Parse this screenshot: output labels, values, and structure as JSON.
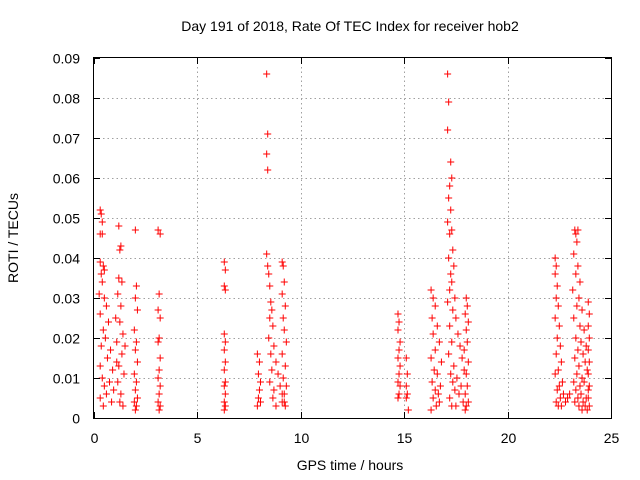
{
  "chart_data": {
    "type": "scatter",
    "title": "Day 191 of 2018, Rate Of TEC Index for receiver hob2",
    "xlabel": "GPS time / hours",
    "ylabel": "ROTI / TECUs",
    "xlim": [
      0,
      25
    ],
    "ylim": [
      0,
      0.09
    ],
    "x_ticks": [
      "0",
      "5",
      "10",
      "15",
      "20",
      "25"
    ],
    "y_ticks": [
      "0",
      "0.01",
      "0.02",
      "0.03",
      "0.04",
      "0.05",
      "0.06",
      "0.07",
      "0.08",
      "0.09"
    ],
    "grid": true,
    "marker": "plus",
    "color": "#ff0000",
    "series": [
      {
        "points": [
          [
            0.3,
            0.052
          ],
          [
            0.35,
            0.051
          ],
          [
            0.4,
            0.049
          ],
          [
            0.3,
            0.046
          ],
          [
            0.4,
            0.046
          ],
          [
            0.3,
            0.039
          ],
          [
            0.45,
            0.038
          ],
          [
            0.35,
            0.036
          ],
          [
            0.5,
            0.037
          ],
          [
            0.4,
            0.034
          ],
          [
            0.25,
            0.031
          ],
          [
            0.5,
            0.03
          ],
          [
            0.6,
            0.028
          ],
          [
            0.3,
            0.026
          ],
          [
            0.7,
            0.024
          ],
          [
            0.45,
            0.022
          ],
          [
            0.55,
            0.02
          ],
          [
            0.35,
            0.018
          ],
          [
            0.8,
            0.017
          ],
          [
            0.65,
            0.015
          ],
          [
            0.3,
            0.013
          ],
          [
            0.9,
            0.012
          ],
          [
            0.4,
            0.01
          ],
          [
            0.75,
            0.009
          ],
          [
            0.5,
            0.008
          ],
          [
            0.95,
            0.007
          ],
          [
            0.6,
            0.006
          ],
          [
            0.3,
            0.005
          ],
          [
            0.85,
            0.004
          ],
          [
            0.45,
            0.003
          ],
          [
            1.2,
            0.048
          ],
          [
            1.3,
            0.043
          ],
          [
            1.25,
            0.042
          ],
          [
            1.2,
            0.035
          ],
          [
            1.35,
            0.034
          ],
          [
            1.15,
            0.031
          ],
          [
            1.3,
            0.028
          ],
          [
            1.25,
            0.024
          ],
          [
            1.4,
            0.021
          ],
          [
            1.1,
            0.019
          ],
          [
            1.35,
            0.016
          ],
          [
            1.2,
            0.013
          ],
          [
            1.45,
            0.011
          ],
          [
            1.15,
            0.009
          ],
          [
            1.3,
            0.006
          ],
          [
            1.25,
            0.004
          ],
          [
            1.4,
            0.003
          ],
          [
            1.05,
            0.025
          ],
          [
            1.5,
            0.018
          ],
          [
            1.1,
            0.014
          ],
          [
            2.0,
            0.047
          ],
          [
            2.05,
            0.033
          ],
          [
            2.0,
            0.03
          ],
          [
            2.1,
            0.027
          ],
          [
            1.95,
            0.022
          ],
          [
            2.05,
            0.019
          ],
          [
            2.0,
            0.017
          ],
          [
            2.1,
            0.014
          ],
          [
            1.95,
            0.011
          ],
          [
            2.05,
            0.009
          ],
          [
            2.0,
            0.007
          ],
          [
            2.1,
            0.005
          ],
          [
            1.95,
            0.004
          ],
          [
            2.05,
            0.003
          ],
          [
            2.0,
            0.002
          ],
          [
            3.1,
            0.047
          ],
          [
            3.2,
            0.046
          ],
          [
            3.15,
            0.031
          ],
          [
            3.1,
            0.027
          ],
          [
            3.2,
            0.025
          ],
          [
            3.15,
            0.02
          ],
          [
            3.1,
            0.019
          ],
          [
            3.2,
            0.015
          ],
          [
            3.15,
            0.012
          ],
          [
            3.1,
            0.01
          ],
          [
            3.2,
            0.008
          ],
          [
            3.15,
            0.006
          ],
          [
            3.1,
            0.004
          ],
          [
            3.2,
            0.003
          ],
          [
            3.15,
            0.002
          ],
          [
            6.3,
            0.039
          ],
          [
            6.35,
            0.037
          ],
          [
            6.3,
            0.033
          ],
          [
            6.35,
            0.032
          ],
          [
            6.3,
            0.021
          ],
          [
            6.35,
            0.019
          ],
          [
            6.3,
            0.017
          ],
          [
            6.35,
            0.014
          ],
          [
            6.3,
            0.012
          ],
          [
            6.35,
            0.009
          ],
          [
            6.3,
            0.008
          ],
          [
            6.35,
            0.006
          ],
          [
            6.3,
            0.004
          ],
          [
            6.35,
            0.003
          ],
          [
            6.3,
            0.002
          ],
          [
            7.9,
            0.016
          ],
          [
            8.0,
            0.014
          ],
          [
            7.95,
            0.011
          ],
          [
            8.05,
            0.009
          ],
          [
            8.0,
            0.007
          ],
          [
            7.95,
            0.005
          ],
          [
            8.05,
            0.004
          ],
          [
            7.9,
            0.003
          ],
          [
            8.35,
            0.086
          ],
          [
            8.4,
            0.071
          ],
          [
            8.35,
            0.066
          ],
          [
            8.4,
            0.062
          ],
          [
            8.35,
            0.041
          ],
          [
            8.4,
            0.038
          ],
          [
            8.45,
            0.036
          ],
          [
            8.5,
            0.033
          ],
          [
            8.55,
            0.029
          ],
          [
            8.6,
            0.027
          ],
          [
            8.5,
            0.025
          ],
          [
            8.65,
            0.023
          ],
          [
            8.45,
            0.02
          ],
          [
            8.7,
            0.018
          ],
          [
            8.55,
            0.016
          ],
          [
            8.8,
            0.014
          ],
          [
            8.6,
            0.012
          ],
          [
            8.9,
            0.011
          ],
          [
            8.5,
            0.009
          ],
          [
            9.0,
            0.008
          ],
          [
            8.7,
            0.007
          ],
          [
            9.1,
            0.006
          ],
          [
            8.65,
            0.005
          ],
          [
            9.2,
            0.004
          ],
          [
            8.8,
            0.003
          ],
          [
            9.1,
            0.039
          ],
          [
            9.15,
            0.038
          ],
          [
            9.2,
            0.034
          ],
          [
            9.1,
            0.031
          ],
          [
            9.25,
            0.028
          ],
          [
            9.15,
            0.025
          ],
          [
            9.2,
            0.022
          ],
          [
            9.3,
            0.019
          ],
          [
            9.1,
            0.016
          ],
          [
            9.25,
            0.013
          ],
          [
            9.15,
            0.01
          ],
          [
            9.3,
            0.008
          ],
          [
            9.2,
            0.006
          ],
          [
            9.1,
            0.004
          ],
          [
            9.25,
            0.003
          ],
          [
            14.7,
            0.026
          ],
          [
            14.75,
            0.024
          ],
          [
            14.7,
            0.022
          ],
          [
            14.8,
            0.019
          ],
          [
            14.75,
            0.017
          ],
          [
            14.7,
            0.015
          ],
          [
            14.8,
            0.013
          ],
          [
            14.75,
            0.011
          ],
          [
            14.7,
            0.009
          ],
          [
            14.8,
            0.008
          ],
          [
            14.75,
            0.006
          ],
          [
            14.7,
            0.005
          ],
          [
            15.1,
            0.015
          ],
          [
            15.15,
            0.011
          ],
          [
            15.1,
            0.008
          ],
          [
            15.15,
            0.006
          ],
          [
            15.1,
            0.005
          ],
          [
            15.2,
            0.002
          ],
          [
            16.3,
            0.032
          ],
          [
            16.4,
            0.03
          ],
          [
            16.5,
            0.028
          ],
          [
            16.35,
            0.025
          ],
          [
            16.6,
            0.023
          ],
          [
            16.4,
            0.021
          ],
          [
            16.7,
            0.019
          ],
          [
            16.5,
            0.017
          ],
          [
            16.3,
            0.015
          ],
          [
            16.8,
            0.014
          ],
          [
            16.45,
            0.012
          ],
          [
            16.6,
            0.011
          ],
          [
            16.35,
            0.009
          ],
          [
            16.75,
            0.008
          ],
          [
            16.5,
            0.007
          ],
          [
            16.65,
            0.006
          ],
          [
            16.4,
            0.005
          ],
          [
            16.7,
            0.004
          ],
          [
            16.55,
            0.003
          ],
          [
            16.3,
            0.002
          ],
          [
            17.1,
            0.086
          ],
          [
            17.15,
            0.079
          ],
          [
            17.1,
            0.072
          ],
          [
            17.25,
            0.064
          ],
          [
            17.3,
            0.06
          ],
          [
            17.2,
            0.058
          ],
          [
            17.15,
            0.055
          ],
          [
            17.25,
            0.052
          ],
          [
            17.1,
            0.049
          ],
          [
            17.3,
            0.047
          ],
          [
            17.2,
            0.046
          ],
          [
            17.35,
            0.042
          ],
          [
            17.15,
            0.04
          ],
          [
            17.4,
            0.038
          ],
          [
            17.25,
            0.036
          ],
          [
            17.3,
            0.034
          ],
          [
            17.2,
            0.032
          ],
          [
            17.45,
            0.03
          ],
          [
            17.1,
            0.029
          ],
          [
            17.35,
            0.027
          ],
          [
            17.5,
            0.025
          ],
          [
            17.2,
            0.023
          ],
          [
            17.6,
            0.021
          ],
          [
            17.3,
            0.019
          ],
          [
            17.7,
            0.018
          ],
          [
            17.15,
            0.016
          ],
          [
            17.8,
            0.015
          ],
          [
            17.4,
            0.013
          ],
          [
            17.9,
            0.012
          ],
          [
            17.25,
            0.011
          ],
          [
            17.55,
            0.01
          ],
          [
            17.35,
            0.009
          ],
          [
            17.75,
            0.008
          ],
          [
            17.45,
            0.007
          ],
          [
            17.65,
            0.006
          ],
          [
            17.2,
            0.005
          ],
          [
            17.85,
            0.004
          ],
          [
            17.5,
            0.003
          ],
          [
            17.95,
            0.002
          ],
          [
            17.3,
            0.003
          ],
          [
            18.0,
            0.03
          ],
          [
            18.05,
            0.028
          ],
          [
            17.95,
            0.026
          ],
          [
            18.1,
            0.024
          ],
          [
            18.0,
            0.022
          ],
          [
            18.05,
            0.019
          ],
          [
            17.9,
            0.017
          ],
          [
            18.1,
            0.014
          ],
          [
            18.0,
            0.011
          ],
          [
            18.05,
            0.008
          ],
          [
            17.95,
            0.006
          ],
          [
            18.1,
            0.004
          ],
          [
            18.0,
            0.003
          ],
          [
            22.3,
            0.04
          ],
          [
            22.35,
            0.038
          ],
          [
            22.3,
            0.036
          ],
          [
            22.4,
            0.033
          ],
          [
            22.35,
            0.03
          ],
          [
            22.45,
            0.028
          ],
          [
            22.3,
            0.025
          ],
          [
            22.5,
            0.023
          ],
          [
            22.4,
            0.02
          ],
          [
            22.55,
            0.018
          ],
          [
            22.35,
            0.016
          ],
          [
            22.6,
            0.014
          ],
          [
            22.45,
            0.012
          ],
          [
            22.3,
            0.011
          ],
          [
            22.65,
            0.009
          ],
          [
            22.5,
            0.008
          ],
          [
            22.4,
            0.007
          ],
          [
            22.7,
            0.006
          ],
          [
            22.55,
            0.005
          ],
          [
            22.35,
            0.004
          ],
          [
            22.6,
            0.003
          ],
          [
            22.45,
            0.003
          ],
          [
            22.8,
            0.004
          ],
          [
            22.9,
            0.005
          ],
          [
            23.0,
            0.006
          ],
          [
            23.25,
            0.047
          ],
          [
            23.3,
            0.046
          ],
          [
            23.4,
            0.047
          ],
          [
            23.35,
            0.044
          ],
          [
            23.2,
            0.041
          ],
          [
            23.4,
            0.038
          ],
          [
            23.3,
            0.036
          ],
          [
            23.5,
            0.034
          ],
          [
            23.15,
            0.032
          ],
          [
            23.45,
            0.03
          ],
          [
            23.35,
            0.028
          ],
          [
            23.6,
            0.027
          ],
          [
            23.2,
            0.025
          ],
          [
            23.5,
            0.023
          ],
          [
            23.7,
            0.022
          ],
          [
            23.3,
            0.02
          ],
          [
            23.55,
            0.019
          ],
          [
            23.8,
            0.018
          ],
          [
            23.4,
            0.017
          ],
          [
            23.65,
            0.016
          ],
          [
            23.25,
            0.015
          ],
          [
            23.75,
            0.014
          ],
          [
            23.45,
            0.013
          ],
          [
            23.85,
            0.012
          ],
          [
            23.35,
            0.011
          ],
          [
            23.6,
            0.01
          ],
          [
            23.2,
            0.009
          ],
          [
            23.7,
            0.009
          ],
          [
            23.5,
            0.008
          ],
          [
            23.9,
            0.007
          ],
          [
            23.3,
            0.007
          ],
          [
            23.55,
            0.006
          ],
          [
            23.8,
            0.005
          ],
          [
            23.4,
            0.005
          ],
          [
            23.65,
            0.004
          ],
          [
            23.25,
            0.004
          ],
          [
            23.75,
            0.003
          ],
          [
            23.45,
            0.003
          ],
          [
            23.85,
            0.002
          ],
          [
            23.6,
            0.002
          ],
          [
            23.9,
            0.029
          ],
          [
            23.95,
            0.026
          ],
          [
            23.9,
            0.023
          ],
          [
            23.95,
            0.02
          ],
          [
            23.9,
            0.017
          ],
          [
            23.95,
            0.014
          ],
          [
            23.9,
            0.011
          ],
          [
            23.95,
            0.008
          ],
          [
            23.9,
            0.005
          ],
          [
            23.95,
            0.003
          ]
        ]
      }
    ]
  }
}
